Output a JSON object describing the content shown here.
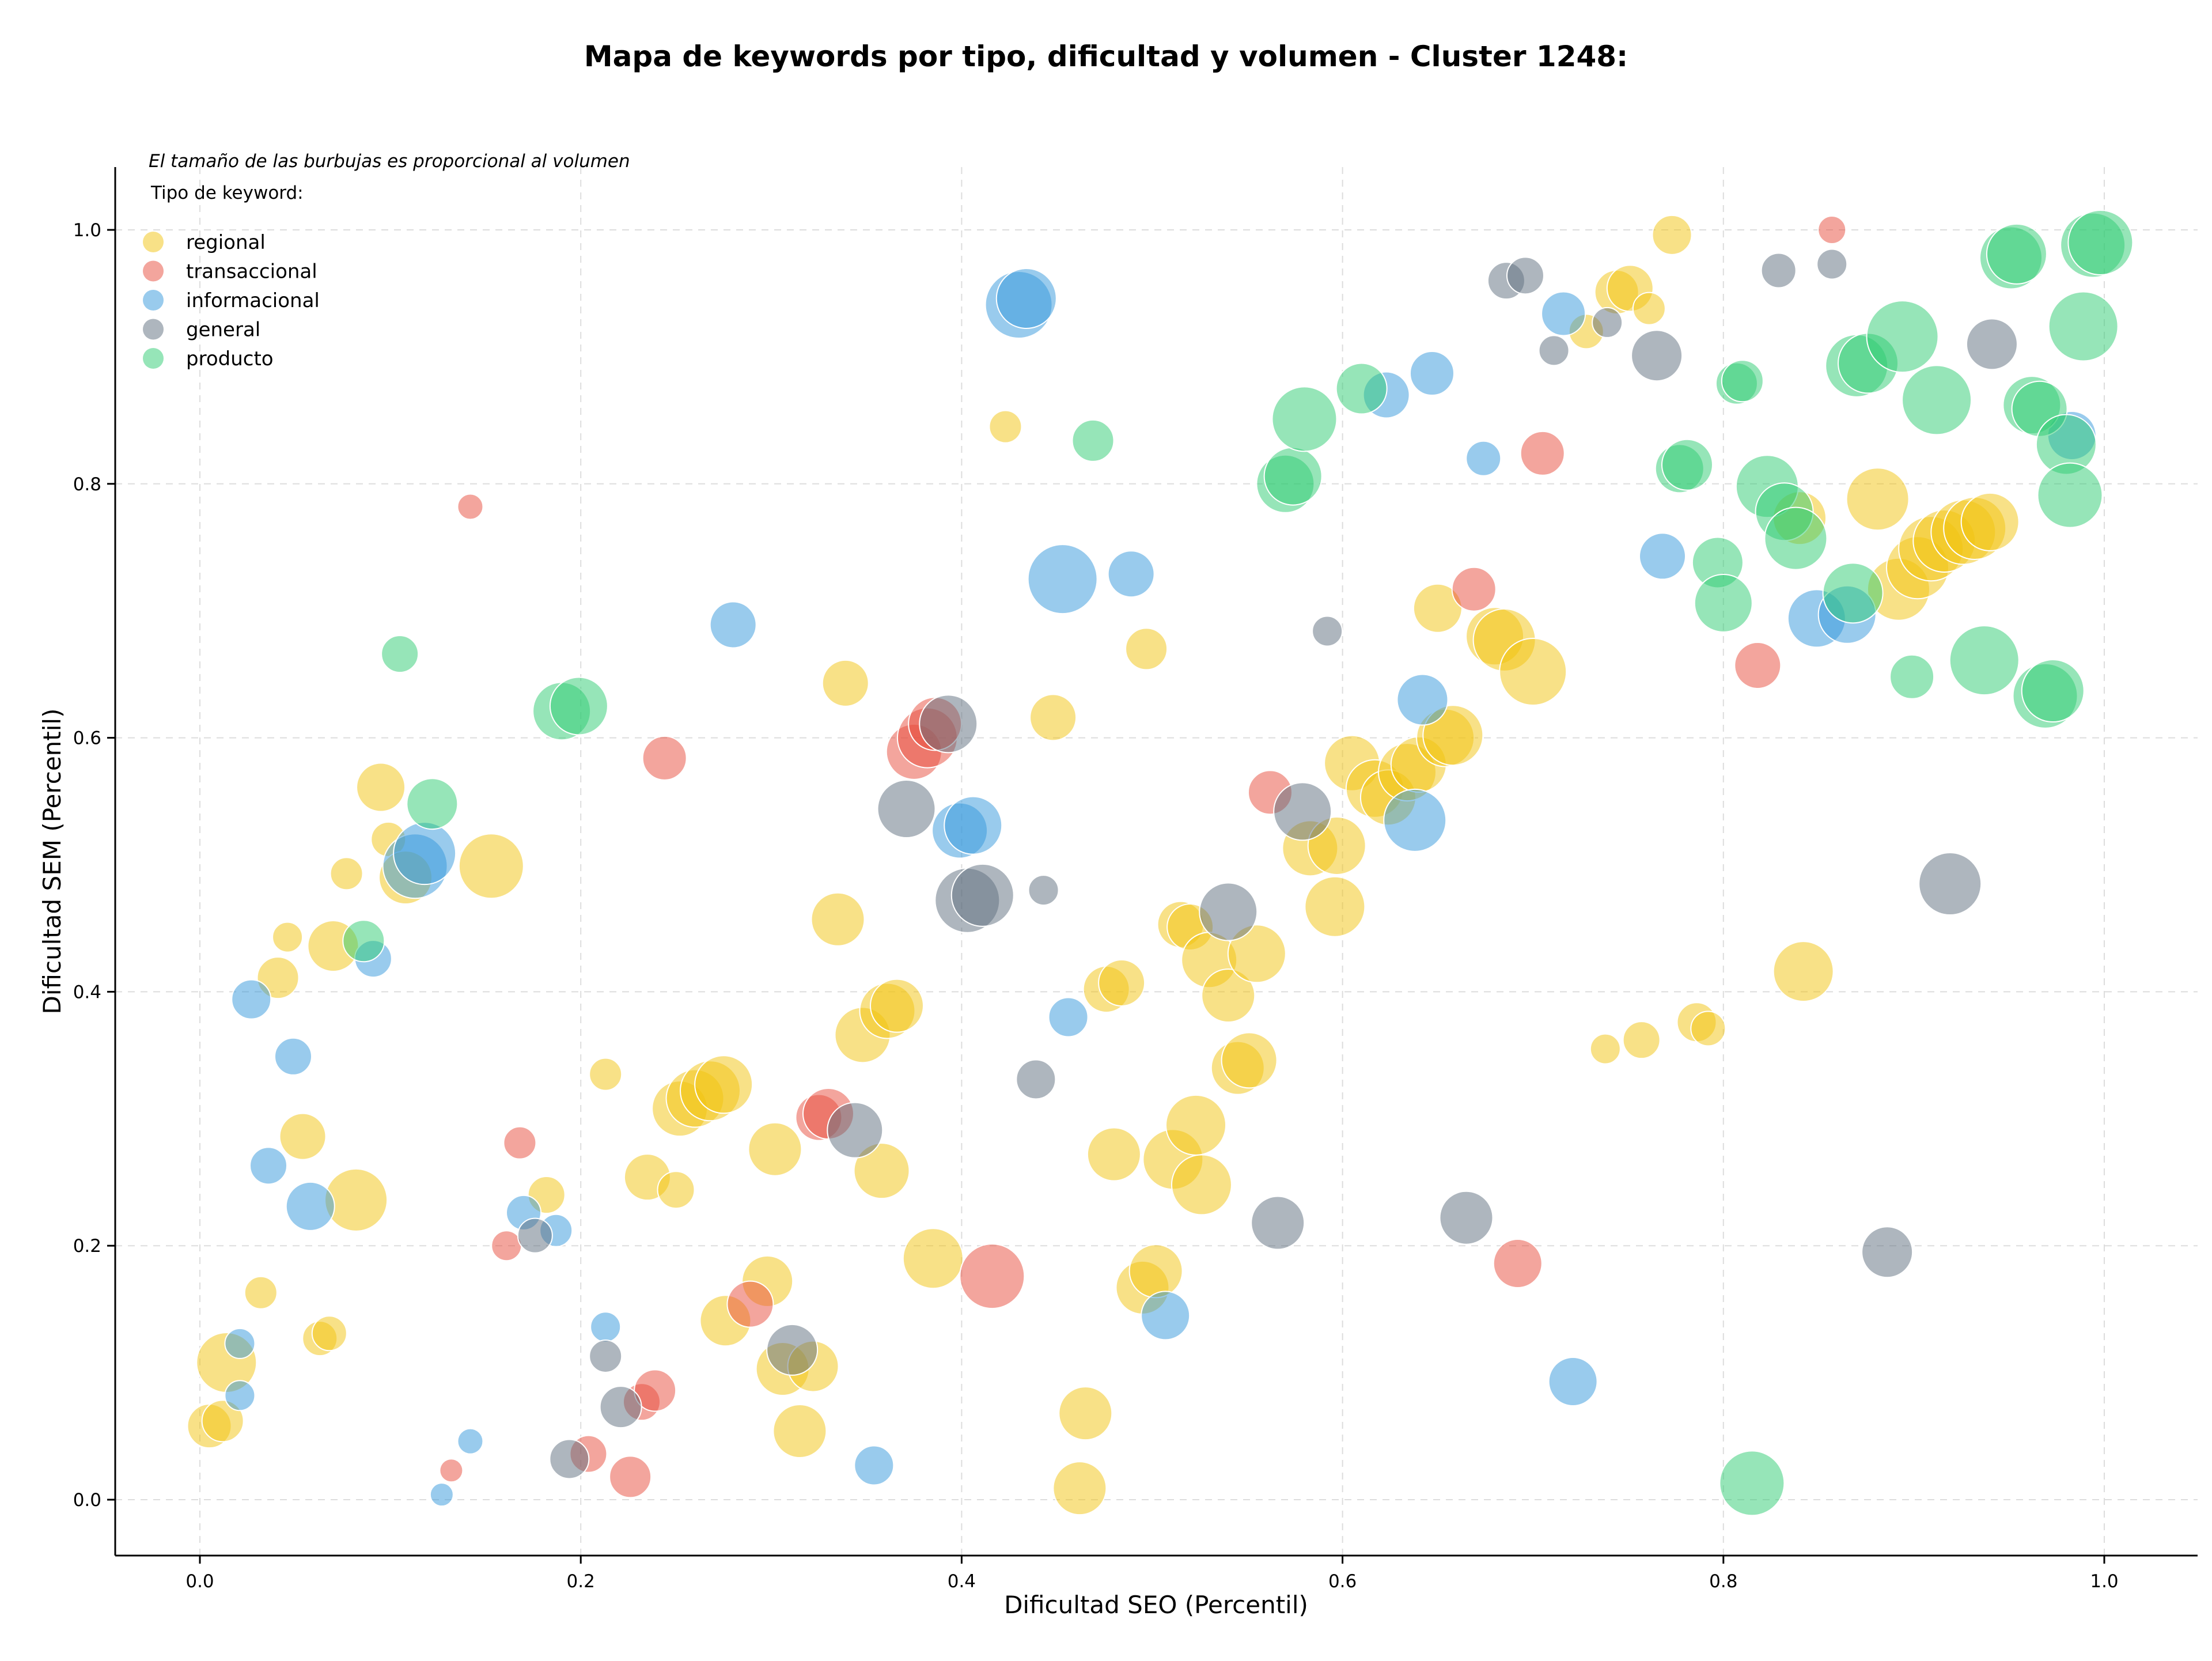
{
  "chart_data": {
    "type": "scatter",
    "title": "Mapa de keywords por tipo, dificultad y volumen - Cluster 1248:",
    "xlabel": "Dificultad SEO (Percentil)",
    "ylabel": "Dificultad SEM (Percentil)",
    "xlim": [
      -0.045,
      1.05
    ],
    "ylim": [
      -0.045,
      1.05
    ],
    "xticks": [
      0.0,
      0.2,
      0.4,
      0.6,
      0.8,
      1.0
    ],
    "yticks": [
      0.0,
      0.2,
      0.4,
      0.6,
      0.8,
      1.0
    ],
    "xtick_labels": [
      "0.0",
      "0.2",
      "0.4",
      "0.6",
      "0.8",
      "1.0"
    ],
    "ytick_labels": [
      "0.0",
      "0.2",
      "0.4",
      "0.6",
      "0.8",
      "1.0"
    ],
    "grid": true,
    "note": "El tamaño de las burbujas es proporcional al volumen",
    "legend_title": "Tipo de keyword:",
    "legend_position": "top-left",
    "size_encoding": "volumen",
    "series": [
      {
        "name": "regional",
        "color": "#f1c40f",
        "points": [
          [
            0.005,
            0.058,
            38
          ],
          [
            0.012,
            0.062,
            36
          ],
          [
            0.014,
            0.108,
            52
          ],
          [
            0.032,
            0.163,
            28
          ],
          [
            0.046,
            0.443,
            26
          ],
          [
            0.041,
            0.411,
            36
          ],
          [
            0.054,
            0.286,
            40
          ],
          [
            0.063,
            0.127,
            30
          ],
          [
            0.068,
            0.131,
            30
          ],
          [
            0.07,
            0.436,
            44
          ],
          [
            0.077,
            0.493,
            28
          ],
          [
            0.082,
            0.236,
            54
          ],
          [
            0.095,
            0.561,
            42
          ],
          [
            0.099,
            0.52,
            30
          ],
          [
            0.108,
            0.49,
            46
          ],
          [
            0.153,
            0.499,
            56
          ],
          [
            0.182,
            0.24,
            32
          ],
          [
            0.213,
            0.335,
            28
          ],
          [
            0.235,
            0.254,
            40
          ],
          [
            0.25,
            0.244,
            32
          ],
          [
            0.252,
            0.308,
            48
          ],
          [
            0.26,
            0.316,
            50
          ],
          [
            0.268,
            0.322,
            52
          ],
          [
            0.275,
            0.327,
            50
          ],
          [
            0.276,
            0.141,
            44
          ],
          [
            0.298,
            0.172,
            44
          ],
          [
            0.302,
            0.276,
            46
          ],
          [
            0.306,
            0.103,
            46
          ],
          [
            0.315,
            0.054,
            46
          ],
          [
            0.322,
            0.105,
            44
          ],
          [
            0.335,
            0.457,
            46
          ],
          [
            0.339,
            0.643,
            40
          ],
          [
            0.348,
            0.366,
            48
          ],
          [
            0.358,
            0.259,
            48
          ],
          [
            0.361,
            0.385,
            48
          ],
          [
            0.366,
            0.389,
            46
          ],
          [
            0.385,
            0.19,
            52
          ],
          [
            0.423,
            0.845,
            28
          ],
          [
            0.448,
            0.616,
            40
          ],
          [
            0.462,
            0.009,
            46
          ],
          [
            0.465,
            0.068,
            46
          ],
          [
            0.476,
            0.402,
            40
          ],
          [
            0.48,
            0.272,
            46
          ],
          [
            0.484,
            0.407,
            40
          ],
          [
            0.497,
            0.67,
            36
          ],
          [
            0.495,
            0.167,
            46
          ],
          [
            0.502,
            0.18,
            46
          ],
          [
            0.511,
            0.268,
            52
          ],
          [
            0.515,
            0.453,
            40
          ],
          [
            0.52,
            0.451,
            40
          ],
          [
            0.523,
            0.295,
            52
          ],
          [
            0.526,
            0.248,
            52
          ],
          [
            0.53,
            0.425,
            48
          ],
          [
            0.54,
            0.397,
            46
          ],
          [
            0.545,
            0.34,
            46
          ],
          [
            0.551,
            0.346,
            48
          ],
          [
            0.555,
            0.43,
            50
          ],
          [
            0.583,
            0.513,
            48
          ],
          [
            0.596,
            0.467,
            52
          ],
          [
            0.597,
            0.515,
            50
          ],
          [
            0.605,
            0.58,
            48
          ],
          [
            0.617,
            0.56,
            50
          ],
          [
            0.624,
            0.553,
            48
          ],
          [
            0.634,
            0.573,
            50
          ],
          [
            0.64,
            0.579,
            48
          ],
          [
            0.65,
            0.702,
            42
          ],
          [
            0.654,
            0.6,
            50
          ],
          [
            0.658,
            0.602,
            52
          ],
          [
            0.68,
            0.68,
            50
          ],
          [
            0.685,
            0.677,
            54
          ],
          [
            0.7,
            0.652,
            58
          ],
          [
            0.728,
            0.92,
            30
          ],
          [
            0.738,
            0.355,
            26
          ],
          [
            0.744,
            0.951,
            38
          ],
          [
            0.751,
            0.954,
            40
          ],
          [
            0.757,
            0.362,
            32
          ],
          [
            0.761,
            0.938,
            28
          ],
          [
            0.773,
            0.996,
            34
          ],
          [
            0.786,
            0.376,
            34
          ],
          [
            0.792,
            0.371,
            30
          ],
          [
            0.84,
            0.773,
            46
          ],
          [
            0.842,
            0.416,
            52
          ],
          [
            0.881,
            0.788,
            54
          ],
          [
            0.892,
            0.717,
            54
          ],
          [
            0.902,
            0.734,
            54
          ],
          [
            0.909,
            0.749,
            56
          ],
          [
            0.916,
            0.755,
            54
          ],
          [
            0.926,
            0.762,
            56
          ],
          [
            0.932,
            0.765,
            54
          ],
          [
            0.94,
            0.77,
            50
          ]
        ]
      },
      {
        "name": "transaccional",
        "color": "#e74c3c",
        "points": [
          [
            0.132,
            0.023,
            20
          ],
          [
            0.142,
            0.782,
            22
          ],
          [
            0.161,
            0.2,
            26
          ],
          [
            0.168,
            0.281,
            28
          ],
          [
            0.204,
            0.036,
            32
          ],
          [
            0.226,
            0.018,
            36
          ],
          [
            0.232,
            0.077,
            32
          ],
          [
            0.239,
            0.086,
            36
          ],
          [
            0.244,
            0.584,
            38
          ],
          [
            0.289,
            0.154,
            40
          ],
          [
            0.325,
            0.301,
            40
          ],
          [
            0.33,
            0.304,
            44
          ],
          [
            0.375,
            0.589,
            48
          ],
          [
            0.382,
            0.6,
            52
          ],
          [
            0.386,
            0.611,
            46
          ],
          [
            0.416,
            0.176,
            56
          ],
          [
            0.562,
            0.557,
            38
          ],
          [
            0.669,
            0.717,
            38
          ],
          [
            0.692,
            0.186,
            42
          ],
          [
            0.705,
            0.824,
            38
          ],
          [
            0.818,
            0.657,
            40
          ],
          [
            0.857,
            1.0,
            24
          ]
        ]
      },
      {
        "name": "informacional",
        "color": "#3498db",
        "points": [
          [
            0.021,
            0.082,
            26
          ],
          [
            0.021,
            0.123,
            26
          ],
          [
            0.027,
            0.394,
            34
          ],
          [
            0.036,
            0.263,
            32
          ],
          [
            0.049,
            0.349,
            32
          ],
          [
            0.058,
            0.231,
            42
          ],
          [
            0.091,
            0.426,
            32
          ],
          [
            0.113,
            0.499,
            56
          ],
          [
            0.118,
            0.509,
            54
          ],
          [
            0.127,
            0.004,
            20
          ],
          [
            0.142,
            0.046,
            22
          ],
          [
            0.17,
            0.226,
            30
          ],
          [
            0.187,
            0.212,
            28
          ],
          [
            0.213,
            0.136,
            26
          ],
          [
            0.28,
            0.689,
            40
          ],
          [
            0.354,
            0.027,
            34
          ],
          [
            0.399,
            0.527,
            48
          ],
          [
            0.406,
            0.531,
            50
          ],
          [
            0.43,
            0.941,
            58
          ],
          [
            0.434,
            0.946,
            52
          ],
          [
            0.453,
            0.725,
            60
          ],
          [
            0.456,
            0.38,
            34
          ],
          [
            0.489,
            0.729,
            40
          ],
          [
            0.507,
            0.145,
            42
          ],
          [
            0.623,
            0.87,
            40
          ],
          [
            0.638,
            0.535,
            54
          ],
          [
            0.642,
            0.63,
            44
          ],
          [
            0.647,
            0.887,
            38
          ],
          [
            0.674,
            0.82,
            30
          ],
          [
            0.716,
            0.934,
            38
          ],
          [
            0.721,
            0.093,
            42
          ],
          [
            0.768,
            0.743,
            40
          ],
          [
            0.849,
            0.694,
            50
          ],
          [
            0.865,
            0.697,
            50
          ],
          [
            0.983,
            0.838,
            42
          ]
        ]
      },
      {
        "name": "general",
        "color": "#5d6d7e",
        "points": [
          [
            0.176,
            0.208,
            30
          ],
          [
            0.194,
            0.032,
            34
          ],
          [
            0.213,
            0.113,
            28
          ],
          [
            0.221,
            0.073,
            36
          ],
          [
            0.311,
            0.118,
            44
          ],
          [
            0.344,
            0.291,
            48
          ],
          [
            0.371,
            0.544,
            50
          ],
          [
            0.393,
            0.611,
            50
          ],
          [
            0.403,
            0.472,
            56
          ],
          [
            0.411,
            0.476,
            54
          ],
          [
            0.439,
            0.331,
            34
          ],
          [
            0.443,
            0.48,
            26
          ],
          [
            0.54,
            0.463,
            50
          ],
          [
            0.566,
            0.218,
            46
          ],
          [
            0.579,
            0.542,
            50
          ],
          [
            0.592,
            0.684,
            26
          ],
          [
            0.665,
            0.222,
            46
          ],
          [
            0.686,
            0.96,
            32
          ],
          [
            0.696,
            0.964,
            32
          ],
          [
            0.711,
            0.905,
            26
          ],
          [
            0.739,
            0.927,
            26
          ],
          [
            0.765,
            0.901,
            44
          ],
          [
            0.829,
            0.968,
            30
          ],
          [
            0.857,
            0.973,
            26
          ],
          [
            0.886,
            0.195,
            44
          ],
          [
            0.919,
            0.485,
            54
          ],
          [
            0.941,
            0.91,
            44
          ]
        ]
      },
      {
        "name": "producto",
        "color": "#2ecc71",
        "points": [
          [
            0.086,
            0.44,
            36
          ],
          [
            0.105,
            0.666,
            32
          ],
          [
            0.122,
            0.548,
            44
          ],
          [
            0.19,
            0.621,
            50
          ],
          [
            0.199,
            0.625,
            50
          ],
          [
            0.469,
            0.834,
            36
          ],
          [
            0.57,
            0.8,
            50
          ],
          [
            0.574,
            0.806,
            50
          ],
          [
            0.58,
            0.851,
            56
          ],
          [
            0.61,
            0.875,
            44
          ],
          [
            0.777,
            0.812,
            42
          ],
          [
            0.781,
            0.815,
            44
          ],
          [
            0.797,
            0.738,
            44
          ],
          [
            0.8,
            0.706,
            50
          ],
          [
            0.807,
            0.879,
            36
          ],
          [
            0.81,
            0.881,
            36
          ],
          [
            0.815,
            0.013,
            56
          ],
          [
            0.823,
            0.798,
            54
          ],
          [
            0.832,
            0.778,
            50
          ],
          [
            0.838,
            0.757,
            54
          ],
          [
            0.868,
            0.714,
            52
          ],
          [
            0.87,
            0.893,
            54
          ],
          [
            0.876,
            0.895,
            52
          ],
          [
            0.894,
            0.916,
            62
          ],
          [
            0.899,
            0.648,
            38
          ],
          [
            0.912,
            0.866,
            60
          ],
          [
            0.937,
            0.661,
            60
          ],
          [
            0.951,
            0.978,
            54
          ],
          [
            0.954,
            0.981,
            52
          ],
          [
            0.962,
            0.862,
            50
          ],
          [
            0.966,
            0.859,
            48
          ],
          [
            0.969,
            0.633,
            56
          ],
          [
            0.973,
            0.637,
            54
          ],
          [
            0.98,
            0.831,
            52
          ],
          [
            0.982,
            0.791,
            56
          ],
          [
            0.989,
            0.924,
            60
          ],
          [
            0.994,
            0.988,
            56
          ],
          [
            0.998,
            0.99,
            56
          ]
        ]
      }
    ]
  }
}
